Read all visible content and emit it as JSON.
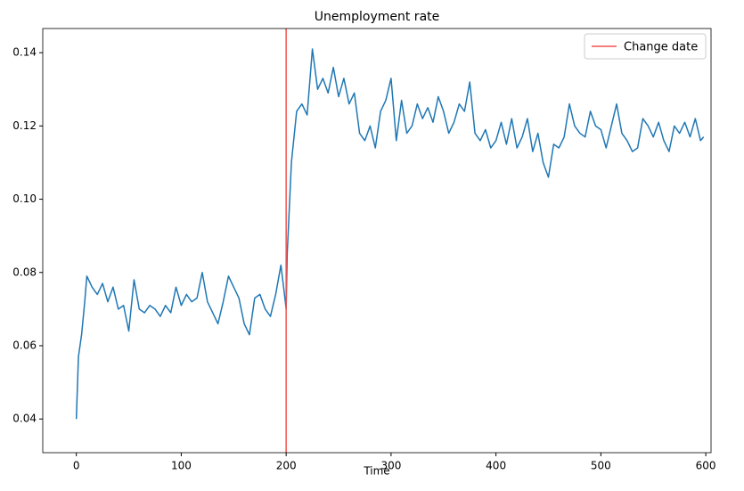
{
  "chart_data": {
    "type": "line",
    "title": "Unemployment rate",
    "x_label": "Time",
    "x": [
      0,
      2,
      5,
      8,
      10,
      15,
      20,
      25,
      30,
      35,
      40,
      45,
      50,
      55,
      60,
      65,
      70,
      75,
      80,
      85,
      90,
      95,
      100,
      105,
      110,
      115,
      120,
      125,
      130,
      135,
      140,
      145,
      150,
      155,
      160,
      165,
      170,
      175,
      180,
      185,
      190,
      195,
      198,
      200,
      201,
      205,
      210,
      215,
      220,
      225,
      230,
      235,
      240,
      245,
      250,
      255,
      260,
      265,
      270,
      275,
      280,
      285,
      290,
      295,
      300,
      305,
      310,
      315,
      320,
      325,
      330,
      335,
      340,
      345,
      350,
      355,
      360,
      365,
      370,
      375,
      380,
      385,
      390,
      395,
      400,
      405,
      410,
      415,
      420,
      425,
      430,
      435,
      440,
      445,
      450,
      455,
      460,
      465,
      470,
      475,
      480,
      485,
      490,
      495,
      500,
      505,
      510,
      515,
      520,
      525,
      530,
      535,
      540,
      545,
      550,
      555,
      560,
      565,
      570,
      575,
      580,
      585,
      590,
      595,
      598
    ],
    "series": [
      {
        "color": "#1f77b4",
        "values": [
          0.04,
          0.057,
          0.063,
          0.072,
          0.079,
          0.076,
          0.074,
          0.077,
          0.072,
          0.076,
          0.07,
          0.071,
          0.064,
          0.078,
          0.07,
          0.069,
          0.071,
          0.07,
          0.068,
          0.071,
          0.069,
          0.076,
          0.071,
          0.074,
          0.072,
          0.073,
          0.08,
          0.072,
          0.069,
          0.066,
          0.072,
          0.079,
          0.076,
          0.073,
          0.066,
          0.063,
          0.073,
          0.074,
          0.07,
          0.068,
          0.074,
          0.082,
          0.075,
          0.07,
          0.085,
          0.11,
          0.124,
          0.126,
          0.123,
          0.141,
          0.13,
          0.133,
          0.129,
          0.136,
          0.128,
          0.133,
          0.126,
          0.129,
          0.118,
          0.116,
          0.12,
          0.114,
          0.124,
          0.127,
          0.133,
          0.116,
          0.127,
          0.118,
          0.12,
          0.126,
          0.122,
          0.125,
          0.121,
          0.128,
          0.124,
          0.118,
          0.121,
          0.126,
          0.124,
          0.132,
          0.118,
          0.116,
          0.119,
          0.114,
          0.116,
          0.121,
          0.115,
          0.122,
          0.114,
          0.117,
          0.122,
          0.113,
          0.118,
          0.11,
          0.106,
          0.115,
          0.114,
          0.117,
          0.126,
          0.12,
          0.118,
          0.117,
          0.124,
          0.12,
          0.119,
          0.114,
          0.12,
          0.126,
          0.118,
          0.116,
          0.113,
          0.114,
          0.122,
          0.12,
          0.117,
          0.121,
          0.116,
          0.113,
          0.12,
          0.118,
          0.121,
          0.117,
          0.122,
          0.116,
          0.117
        ]
      }
    ],
    "vline": {
      "x": 200,
      "name": "Change date",
      "color": "#ef5350"
    },
    "xlim": [
      -32,
      605
    ],
    "xticks": [
      0,
      100,
      200,
      300,
      400,
      500,
      600
    ],
    "ylim": [
      0.0308,
      0.1466
    ],
    "yticks": [
      0.04,
      0.06,
      0.08,
      {
        "value": 0.1,
        "label": "0.10"
      },
      0.12,
      0.14
    ],
    "legend": "upper right"
  }
}
